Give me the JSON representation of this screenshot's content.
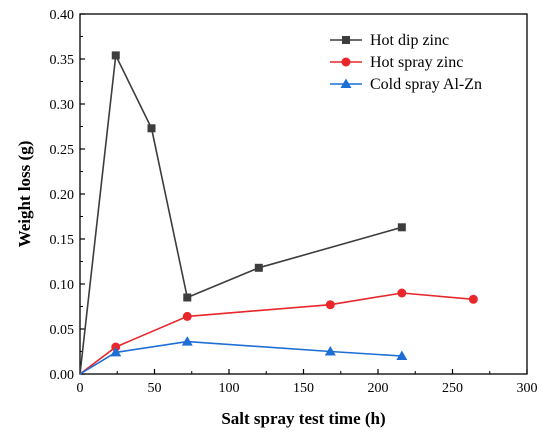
{
  "chart_data": {
    "type": "line",
    "title": "",
    "xlabel": "Salt spray test time (h)",
    "ylabel": "Weight loss (g)",
    "xlim": [
      0,
      300
    ],
    "ylim": [
      0,
      0.4
    ],
    "xticks": [
      0,
      50,
      100,
      150,
      200,
      250,
      300
    ],
    "yticks": [
      "0.00",
      "0.05",
      "0.10",
      "0.15",
      "0.20",
      "0.25",
      "0.30",
      "0.35",
      "0.40"
    ],
    "grid": false,
    "legend_position": "top-right",
    "series": [
      {
        "name": "Hot dip zinc",
        "color": "#3d3d3d",
        "marker": "square",
        "x": [
          0,
          24,
          48,
          72,
          120,
          216
        ],
        "y": [
          0,
          0.354,
          0.273,
          0.085,
          0.118,
          0.163
        ]
      },
      {
        "name": "Hot spray zinc",
        "color": "#e8262b",
        "marker": "circle",
        "x": [
          0,
          24,
          72,
          168,
          216,
          264
        ],
        "y": [
          0,
          0.03,
          0.064,
          0.077,
          0.09,
          0.083
        ]
      },
      {
        "name": "Cold spray Al-Zn",
        "color": "#1d6fd6",
        "marker": "triangle",
        "x": [
          0,
          24,
          72,
          168,
          216
        ],
        "y": [
          0,
          0.024,
          0.036,
          0.025,
          0.02
        ]
      }
    ]
  }
}
